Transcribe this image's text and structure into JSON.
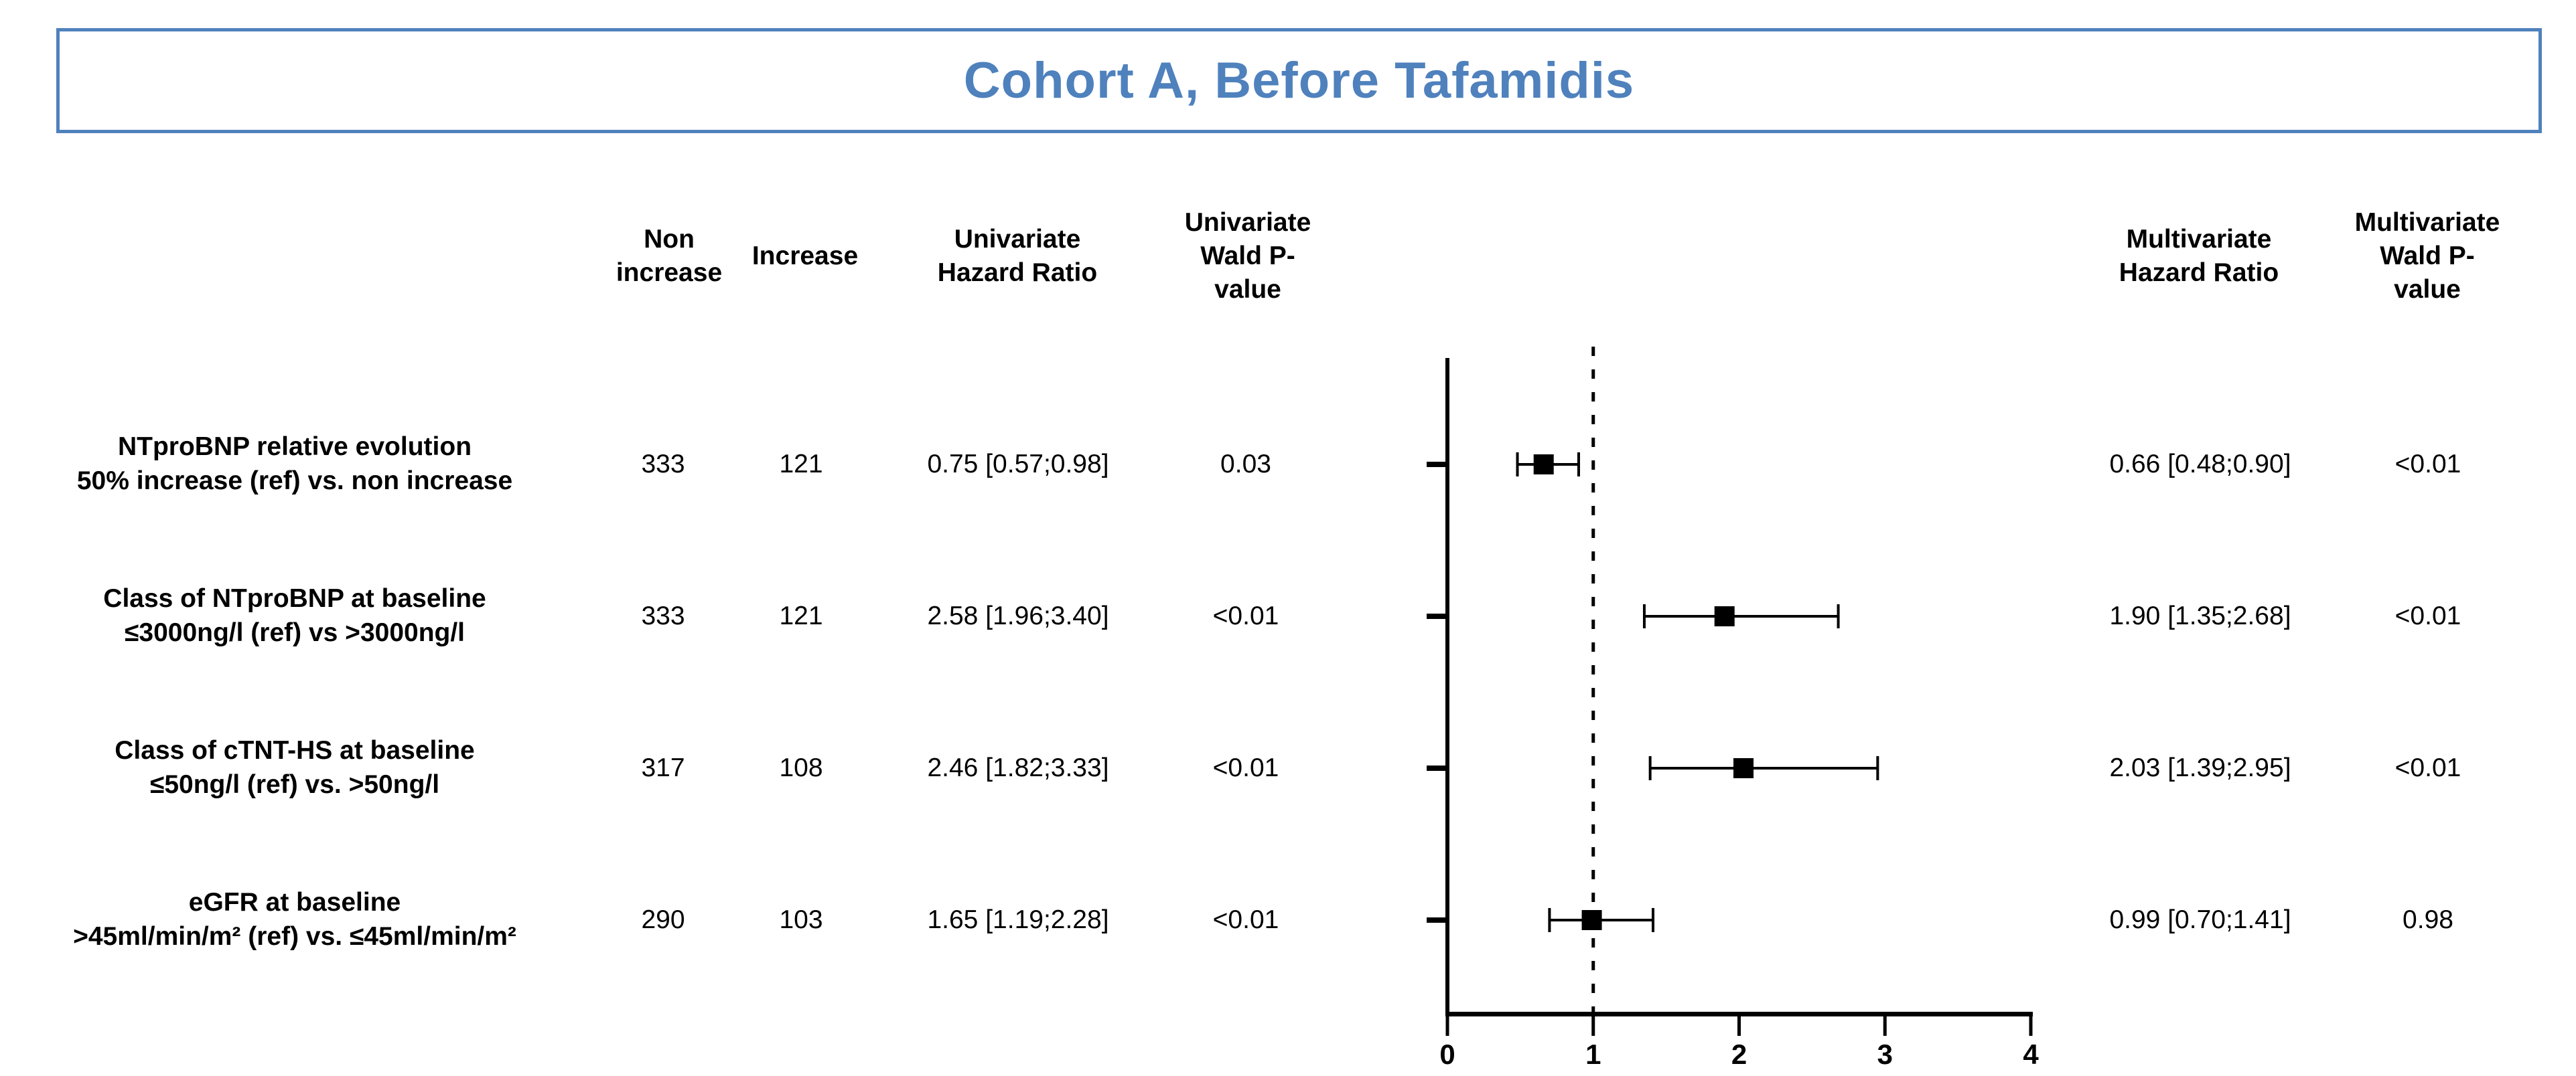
{
  "title": "Cohort A, Before Tafamidis",
  "colors": {
    "accent_blue": "#4f81bd",
    "marker_black": "#000000"
  },
  "columns": {
    "non_increase": "Non\nincrease",
    "increase": "Increase",
    "uni_hr": "Univariate\nHazard Ratio",
    "uni_p": "Univariate\nWald P-\nvalue",
    "multi_hr": "Multivariate\nHazard Ratio",
    "multi_p": "Multivariate\nWald P-\nvalue"
  },
  "rows": [
    {
      "label_line1": "NTproBNP relative evolution",
      "label_line2": "50% increase (ref) vs. non increase",
      "non_increase": "333",
      "increase": "121",
      "uni_hr": "0.75 [0.57;0.98]",
      "uni_p": "0.03",
      "multi_hr": "0.66 [0.48;0.90]",
      "multi_p": "<0.01"
    },
    {
      "label_line1": "Class of NTproBNP at baseline",
      "label_line2": "≤3000ng/l (ref) vs >3000ng/l",
      "non_increase": "333",
      "increase": "121",
      "uni_hr": "2.58 [1.96;3.40]",
      "uni_p": "<0.01",
      "multi_hr": "1.90 [1.35;2.68]",
      "multi_p": "<0.01"
    },
    {
      "label_line1": "Class of cTNT-HS at baseline",
      "label_line2": "≤50ng/l (ref) vs. >50ng/l",
      "non_increase": "317",
      "increase": "108",
      "uni_hr": "2.46 [1.82;3.33]",
      "uni_p": "<0.01",
      "multi_hr": "2.03 [1.39;2.95]",
      "multi_p": "<0.01"
    },
    {
      "label_line1": "eGFR at baseline",
      "label_line2": ">45ml/min/m² (ref) vs. ≤45ml/min/m²",
      "non_increase": "290",
      "increase": "103",
      "uni_hr": "1.65 [1.19;2.28]",
      "uni_p": "<0.01",
      "multi_hr": "0.99 [0.70;1.41]",
      "multi_p": "0.98"
    }
  ],
  "chart_data": {
    "type": "scatter",
    "subtype": "forest-plot",
    "title": "Cohort A, Before Tafamidis",
    "note": "Squares with horizontal error bars show the multivariate hazard ratios with 95% CI; dotted vertical reference line at HR = 1",
    "x_axis": {
      "range": [
        0,
        4
      ],
      "ticks": [
        "0",
        "1",
        "2",
        "3",
        "4"
      ],
      "reference_line_x": 1
    },
    "points": [
      {
        "label": "NTproBNP relative evolution 50% increase (ref) vs. non increase",
        "hr": 0.66,
        "ci_low": 0.48,
        "ci_high": 0.9
      },
      {
        "label": "Class of NTproBNP at baseline ≤3000ng/l (ref) vs >3000ng/l",
        "hr": 1.9,
        "ci_low": 1.35,
        "ci_high": 2.68
      },
      {
        "label": "Class of cTNT-HS at baseline ≤50ng/l (ref) vs. >50ng/l",
        "hr": 2.03,
        "ci_low": 1.39,
        "ci_high": 2.95
      },
      {
        "label": "eGFR at baseline >45ml/min/m² (ref) vs. ≤45ml/min/m²",
        "hr": 0.99,
        "ci_low": 0.7,
        "ci_high": 1.41
      }
    ]
  }
}
